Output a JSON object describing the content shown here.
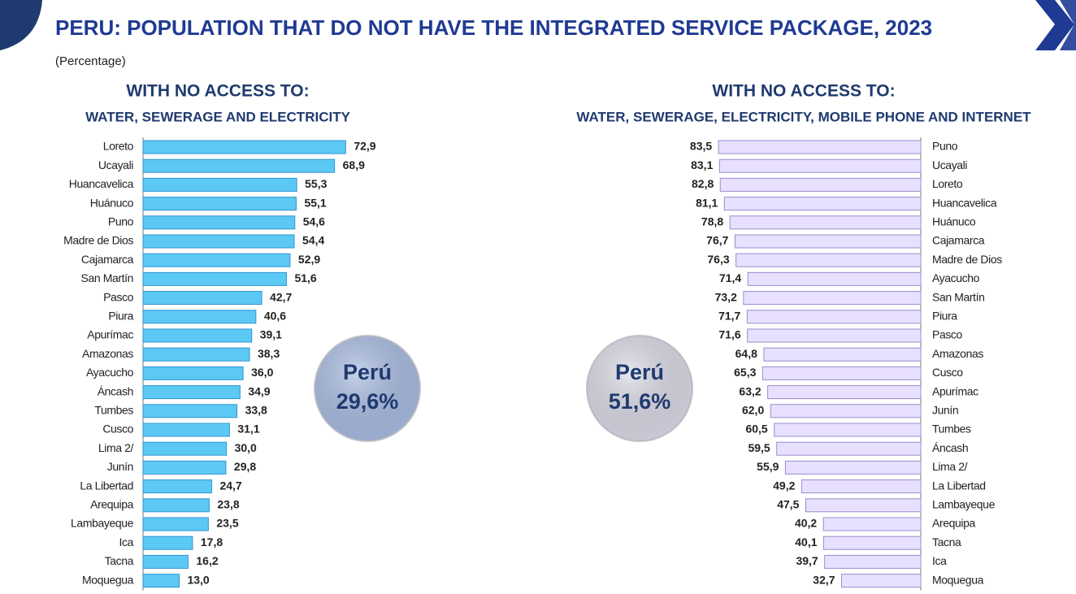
{
  "header": {
    "title": "PERU: POPULATION THAT DO NOT HAVE THE INTEGRATED SERVICE PACKAGE, 2023",
    "subtitle": "(Percentage)"
  },
  "chart_data": [
    {
      "type": "bar",
      "orientation": "horizontal",
      "bar_direction": "right",
      "title": "WITH NO ACCESS TO:",
      "subtitle": "WATER, SEWERAGE AND  ELECTRICITY",
      "color": "#5cc9f5",
      "edge_color": "#2f95d0",
      "categories": [
        "Loreto",
        "Ucayali",
        "Huancavelica",
        "Huánuco",
        "Puno",
        "Madre de Dios",
        "Cajamarca",
        "San Martín",
        "Pasco",
        "Piura",
        "Apurímac",
        "Amazonas",
        "Ayacucho",
        "Áncash",
        "Tumbes",
        "Cusco",
        "Lima 2/",
        "Junín",
        "La Libertad",
        "Arequipa",
        "Lambayeque",
        "Ica",
        "Tacna",
        "Moquegua"
      ],
      "values": [
        72.9,
        68.9,
        55.3,
        55.1,
        54.6,
        54.4,
        52.9,
        51.6,
        42.7,
        40.6,
        39.1,
        38.3,
        36.0,
        34.9,
        33.8,
        31.1,
        30.0,
        29.8,
        24.7,
        23.8,
        23.5,
        17.8,
        16.2,
        13.0
      ],
      "value_labels": [
        "72,9",
        "68,9",
        "55,3",
        "55,1",
        "54,6",
        "54,4",
        "52,9",
        "51,6",
        "42,7",
        "40,6",
        "39,1",
        "38,3",
        "36,0",
        "34,9",
        "33,8",
        "31,1",
        "30,0",
        "29,8",
        "24,7",
        "23,8",
        "23,5",
        "17,8",
        "16,2",
        "13,0"
      ],
      "annotation": {
        "label": "Perú",
        "value": "29,6%",
        "color": "#a9bde3"
      }
    },
    {
      "type": "bar",
      "orientation": "horizontal",
      "bar_direction": "left",
      "title": "WITH NO ACCESS TO:",
      "subtitle": "WATER, SEWERAGE, ELECTRICITY, MOBILE PHONE AND INTERNET",
      "color": "#e8e0ff",
      "edge_color": "#9a8ccc",
      "categories": [
        "Puno",
        "Ucayali",
        "Loreto",
        "Huancavelica",
        "Huánuco",
        "Cajamarca",
        "Madre de Dios",
        "Ayacucho",
        "San Martín",
        "Piura",
        "Pasco",
        "Amazonas",
        "Cusco",
        "Apurímac",
        "Junín",
        "Tumbes",
        "Áncash",
        "Lima 2/",
        "La Libertad",
        "Lambayeque",
        "Arequipa",
        "Tacna",
        "Ica",
        "Moquegua"
      ],
      "values": [
        83.5,
        83.1,
        82.8,
        81.1,
        78.8,
        76.7,
        76.3,
        71.4,
        73.2,
        71.7,
        71.6,
        64.8,
        65.3,
        63.2,
        62.0,
        60.5,
        59.5,
        55.9,
        49.2,
        47.5,
        40.2,
        40.1,
        39.7,
        32.7
      ],
      "value_labels": [
        "83,5",
        "83,1",
        "82,8",
        "81,1",
        "78,8",
        "76,7",
        "76,3",
        "71,4",
        "73,2",
        "71,7",
        "71,6",
        "64,8",
        "65,3",
        "63,2",
        "62,0",
        "60,5",
        "59,5",
        "55,9",
        "49,2",
        "47,5",
        "40,2",
        "40,1",
        "39,7",
        "32,7"
      ],
      "annotation": {
        "label": "Perú",
        "value": "51,6%",
        "color": "#dcdbe8"
      }
    }
  ]
}
